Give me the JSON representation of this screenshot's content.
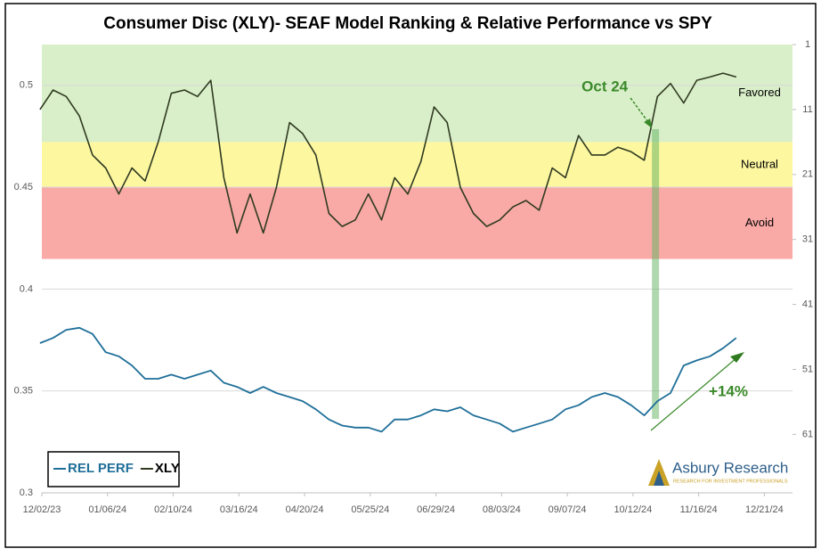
{
  "chart_data": {
    "type": "line",
    "title": "Consumer Disc (XLY)- SEAF Model Ranking & Relative Performance vs SPY",
    "x": [
      "2023-12-01",
      "2023-12-08",
      "2023-12-15",
      "2023-12-22",
      "2023-12-29",
      "2024-01-05",
      "2024-01-12",
      "2024-01-19",
      "2024-01-26",
      "2024-02-02",
      "2024-02-09",
      "2024-02-16",
      "2024-02-23",
      "2024-03-01",
      "2024-03-08",
      "2024-03-15",
      "2024-03-22",
      "2024-03-29",
      "2024-04-05",
      "2024-04-12",
      "2024-04-19",
      "2024-04-26",
      "2024-05-03",
      "2024-05-10",
      "2024-05-17",
      "2024-05-24",
      "2024-05-31",
      "2024-06-07",
      "2024-06-14",
      "2024-06-21",
      "2024-06-28",
      "2024-07-05",
      "2024-07-12",
      "2024-07-19",
      "2024-07-26",
      "2024-08-02",
      "2024-08-09",
      "2024-08-16",
      "2024-08-23",
      "2024-08-30",
      "2024-09-06",
      "2024-09-13",
      "2024-09-20",
      "2024-09-27",
      "2024-10-04",
      "2024-10-11",
      "2024-10-18",
      "2024-10-25",
      "2024-11-01",
      "2024-11-08",
      "2024-11-15",
      "2024-11-22",
      "2024-11-29",
      "2024-12-06"
    ],
    "series": [
      {
        "name": "REL PERF",
        "color": "#1f6f99",
        "axis": "y",
        "values": [
          0.3735,
          0.376,
          0.38,
          0.381,
          0.378,
          0.369,
          0.367,
          0.3625,
          0.356,
          0.356,
          0.358,
          0.356,
          0.358,
          0.36,
          0.354,
          0.352,
          0.349,
          0.352,
          0.349,
          0.347,
          0.345,
          0.341,
          0.336,
          0.333,
          0.332,
          0.332,
          0.33,
          0.336,
          0.336,
          0.338,
          0.341,
          0.34,
          0.342,
          0.338,
          0.336,
          0.334,
          0.33,
          0.332,
          0.334,
          0.336,
          0.341,
          0.343,
          0.347,
          0.349,
          0.347,
          0.343,
          0.338,
          0.345,
          0.349,
          0.3625,
          0.365,
          0.367,
          0.371,
          0.376
        ]
      },
      {
        "name": "XLY",
        "color": "#2f3a20",
        "axis": "y2",
        "values": [
          11,
          8,
          9,
          12,
          18,
          20,
          24,
          20,
          22,
          16,
          8.5,
          8,
          9,
          6.5,
          21.5,
          30,
          24,
          30,
          23,
          13,
          14.7,
          18,
          27,
          29,
          28,
          24,
          28,
          21.5,
          24,
          19,
          10.6,
          13,
          23,
          27,
          29,
          28,
          26,
          25,
          26.5,
          20,
          21.5,
          15,
          18,
          18,
          16.8,
          17.5,
          18.8,
          9,
          7,
          10,
          6.5,
          6,
          5.4,
          6
        ]
      }
    ],
    "xlim": [
      "2023-12-02",
      "2025-01-05"
    ],
    "xticks": [
      {
        "value": "2023-12-02",
        "label": "12/02/23"
      },
      {
        "value": "2024-01-06",
        "label": "01/06/24"
      },
      {
        "value": "2024-02-10",
        "label": "02/10/24"
      },
      {
        "value": "2024-03-16",
        "label": "03/16/24"
      },
      {
        "value": "2024-04-20",
        "label": "04/20/24"
      },
      {
        "value": "2024-05-25",
        "label": "05/25/24"
      },
      {
        "value": "2024-06-29",
        "label": "06/29/24"
      },
      {
        "value": "2024-08-03",
        "label": "08/03/24"
      },
      {
        "value": "2024-09-07",
        "label": "09/07/24"
      },
      {
        "value": "2024-10-12",
        "label": "10/12/24"
      },
      {
        "value": "2024-11-16",
        "label": "11/16/24"
      },
      {
        "value": "2024-12-21",
        "label": "12/21/24"
      }
    ],
    "ylim": [
      0.3,
      0.52
    ],
    "yticks": [
      0.3,
      0.35,
      0.4,
      0.45,
      0.5
    ],
    "y2lim": [
      70,
      1
    ],
    "y2ticks": [
      1,
      11,
      21,
      31,
      41,
      51,
      61
    ],
    "grid": true,
    "bands": [
      {
        "label": "Favored",
        "from": 1,
        "to": 16,
        "color": "#d9efc9"
      },
      {
        "label": "Neutral",
        "from": 16,
        "to": 23,
        "color": "#fdf7a0"
      },
      {
        "label": "Avoid",
        "from": 23,
        "to": 34,
        "color": "#f9aaa6"
      }
    ],
    "annotations": [
      {
        "text": "Oct 24",
        "x": "2024-10-24"
      },
      {
        "text": "+14%"
      }
    ],
    "legend": "lower left",
    "logo_text": "Asbury Research",
    "logo_tagline": "RESEARCH FOR INVESTMENT PROFESSIONALS"
  }
}
